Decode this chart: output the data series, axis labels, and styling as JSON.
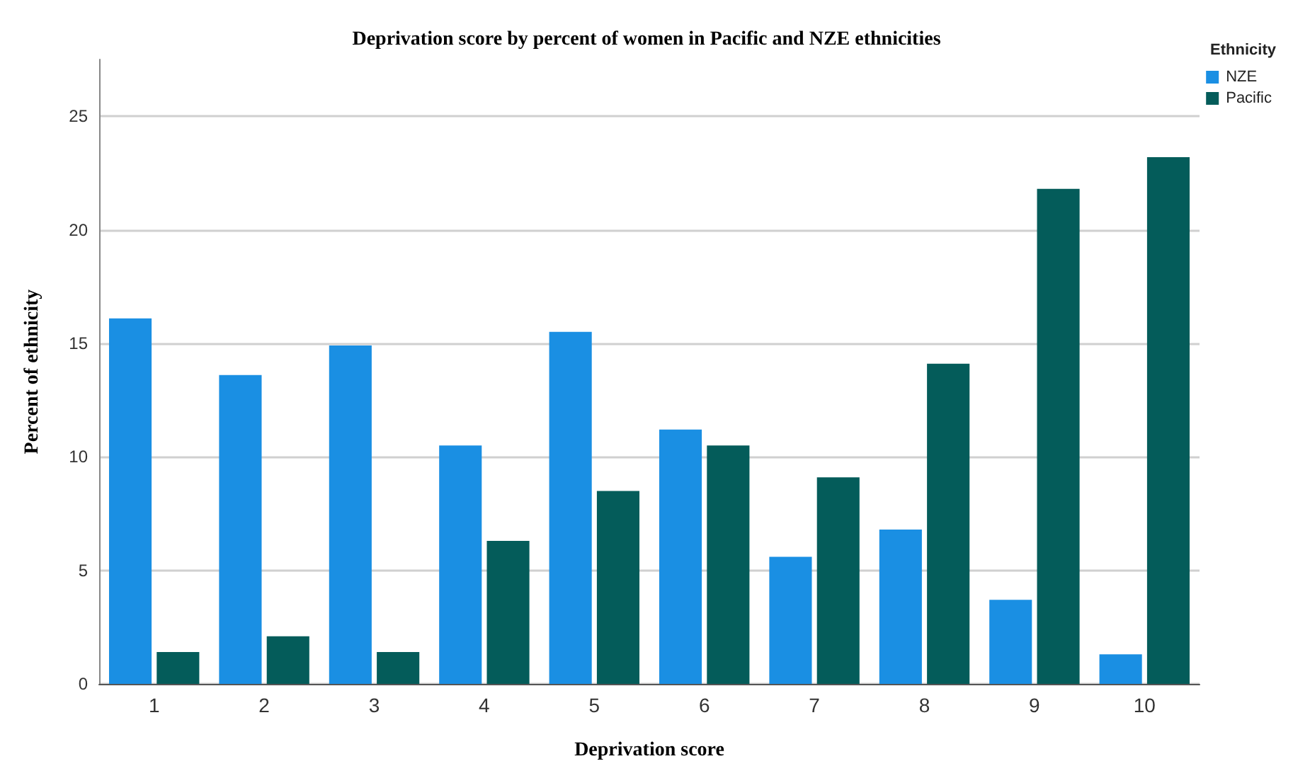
{
  "chart_data": {
    "type": "bar",
    "title": "Deprivation score by percent of women in Pacific and NZE ethnicities",
    "xlabel": "Deprivation score",
    "ylabel": "Percent of ethnicity",
    "legend_title": "Ethnicity",
    "categories": [
      "1",
      "2",
      "3",
      "4",
      "5",
      "6",
      "7",
      "8",
      "9",
      "10"
    ],
    "series": [
      {
        "name": "NZE",
        "color": "#1a8fe3",
        "values": [
          16.1,
          13.6,
          14.9,
          10.5,
          15.5,
          11.2,
          5.6,
          6.8,
          3.7,
          1.3
        ]
      },
      {
        "name": "Pacific",
        "color": "#045c5a",
        "values": [
          1.4,
          2.1,
          1.4,
          6.3,
          8.5,
          10.5,
          9.1,
          14.1,
          21.8,
          23.2
        ]
      }
    ],
    "ylim": [
      0,
      27.5
    ],
    "yticks": [
      0,
      5,
      10,
      15,
      20,
      25
    ],
    "grid": "y",
    "legend": "top right"
  }
}
